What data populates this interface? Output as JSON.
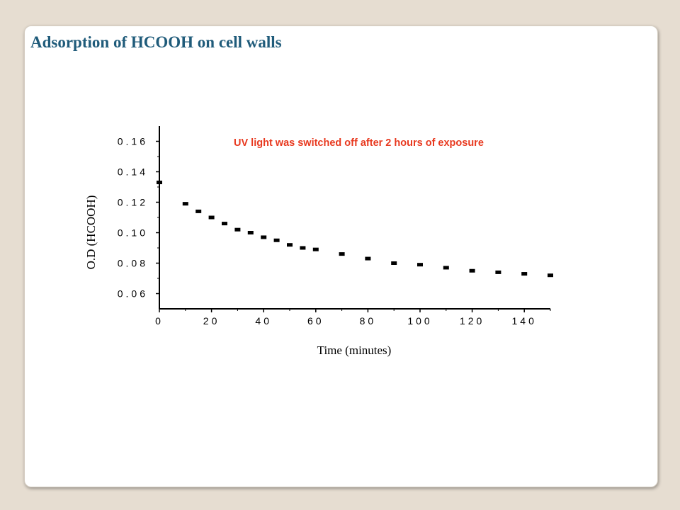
{
  "slide": {
    "title": "Adsorption of HCOOH on cell walls"
  },
  "colors": {
    "background": "#e6ddd1",
    "title": "#1f5b7a",
    "annotation": "#e8391f",
    "markers": "#000000"
  },
  "chart_data": {
    "type": "scatter",
    "title": "",
    "xlabel": "Time (minutes)",
    "ylabel": "O.D (HCOOH)",
    "xlim": [
      0,
      150
    ],
    "ylim": [
      0.05,
      0.17
    ],
    "x_ticks": [
      0,
      20,
      40,
      60,
      80,
      100,
      120,
      140
    ],
    "x_tick_labels": [
      "0",
      "20",
      "40",
      "60",
      "80",
      "100",
      "120",
      "140"
    ],
    "y_ticks": [
      0.06,
      0.08,
      0.1,
      0.12,
      0.14,
      0.16
    ],
    "y_tick_labels": [
      "0.06",
      "0.08",
      "0.10",
      "0.12",
      "0.14",
      "0.16"
    ],
    "grid": false,
    "marker": "square",
    "annotation": "UV light was switched off after 2 hours of exposure",
    "series": [
      {
        "x": [
          0,
          10,
          15,
          20,
          25,
          30,
          35,
          40,
          45,
          50,
          55,
          60,
          70,
          80,
          90,
          100,
          110,
          120,
          130,
          140,
          150
        ],
        "y": [
          0.133,
          0.119,
          0.114,
          0.11,
          0.106,
          0.102,
          0.1,
          0.097,
          0.095,
          0.092,
          0.09,
          0.089,
          0.086,
          0.083,
          0.08,
          0.079,
          0.077,
          0.075,
          0.074,
          0.073,
          0.072
        ]
      }
    ]
  }
}
